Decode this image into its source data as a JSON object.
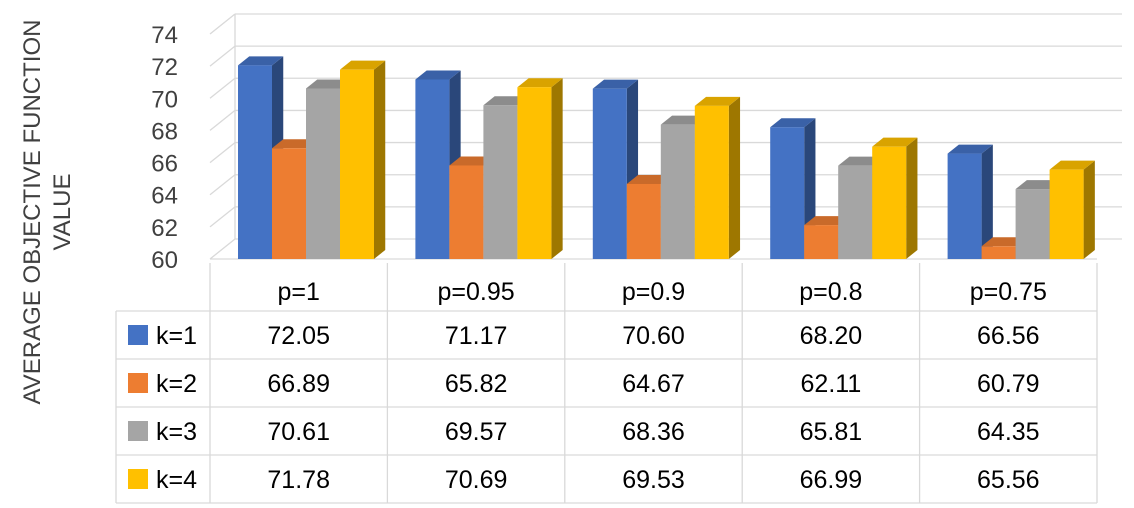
{
  "chart_data": {
    "type": "bar",
    "title": "",
    "xlabel": "",
    "ylabel": "AVERAGE OBJECTIVE FUNCTION VALUE",
    "ylabel_lines": [
      "AVERAGE OBJECTIVE FUNCTION",
      "VALUE"
    ],
    "categories": [
      "p=1",
      "p=0.95",
      "p=0.9",
      "p=0.8",
      "p=0.75"
    ],
    "series": [
      {
        "name": "k=1",
        "color": "#4472C4",
        "values": [
          72.05,
          71.17,
          70.6,
          68.2,
          66.56
        ]
      },
      {
        "name": "k=2",
        "color": "#ED7D31",
        "values": [
          66.89,
          65.82,
          64.67,
          62.11,
          60.79
        ]
      },
      {
        "name": "k=3",
        "color": "#A5A5A5",
        "values": [
          70.61,
          69.57,
          68.36,
          65.81,
          64.35
        ]
      },
      {
        "name": "k=4",
        "color": "#FFC000",
        "values": [
          71.78,
          70.69,
          69.53,
          66.99,
          65.56
        ]
      }
    ],
    "table_values": [
      [
        "72.05",
        "71.17",
        "70.60",
        "68.20",
        "66.56"
      ],
      [
        "66.89",
        "65.82",
        "64.67",
        "62.11",
        "60.79"
      ],
      [
        "70.61",
        "69.57",
        "68.36",
        "65.81",
        "64.35"
      ],
      [
        "71.78",
        "70.69",
        "69.53",
        "66.99",
        "65.56"
      ]
    ],
    "ylim": [
      60,
      74
    ],
    "yticks": [
      "60",
      "62",
      "64",
      "66",
      "68",
      "70",
      "72",
      "74"
    ],
    "grid": true,
    "style": "3d-clustered-column-with-data-table",
    "legend": "data-table-left"
  }
}
